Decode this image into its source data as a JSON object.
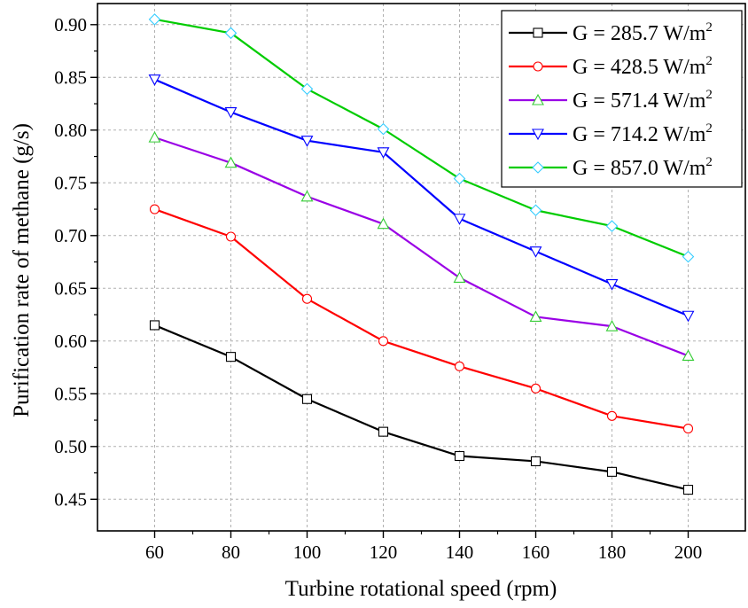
{
  "chart_data": {
    "type": "line",
    "xlabel": "Turbine rotational speed (rpm)",
    "ylabel": "Purification rate of methane (g/s)",
    "x": [
      60,
      80,
      100,
      120,
      140,
      160,
      180,
      200
    ],
    "xticks": [
      "60",
      "80",
      "100",
      "120",
      "140",
      "160",
      "180",
      "200"
    ],
    "yticks": [
      "0.45",
      "0.50",
      "0.55",
      "0.60",
      "0.65",
      "0.70",
      "0.75",
      "0.80",
      "0.85",
      "0.90"
    ],
    "xlim": [
      45,
      215
    ],
    "ylim": [
      0.42,
      0.92
    ],
    "grid": true,
    "legend_position": "top-right",
    "series": [
      {
        "name": "G = 285.7 W/m",
        "name_sup": "2",
        "color": "#000000",
        "marker": "square",
        "values": [
          0.615,
          0.585,
          0.545,
          0.514,
          0.491,
          0.486,
          0.476,
          0.459
        ]
      },
      {
        "name": "G = 428.5 W/m",
        "name_sup": "2",
        "color": "#ff0000",
        "marker": "circle",
        "values": [
          0.725,
          0.699,
          0.64,
          0.6,
          0.576,
          0.555,
          0.529,
          0.517
        ]
      },
      {
        "name": "G = 571.4 W/m",
        "name_sup": "2",
        "color": "#9a00e6",
        "marker": "triangle-up",
        "values": [
          0.793,
          0.769,
          0.737,
          0.711,
          0.66,
          0.623,
          0.614,
          0.586
        ]
      },
      {
        "name": "G = 714.2 W/m",
        "name_sup": "2",
        "color": "#0000ff",
        "marker": "triangle-down",
        "values": [
          0.848,
          0.817,
          0.79,
          0.779,
          0.716,
          0.685,
          0.654,
          0.624
        ]
      },
      {
        "name": "G = 857.0 W/m",
        "name_sup": "2",
        "color": "#00cc00",
        "marker": "diamond",
        "values": [
          0.905,
          0.892,
          0.839,
          0.801,
          0.754,
          0.724,
          0.709,
          0.68
        ]
      }
    ],
    "marker_colors": {
      "triangle-up": "#33cc33",
      "diamond": "#33ccff"
    }
  }
}
